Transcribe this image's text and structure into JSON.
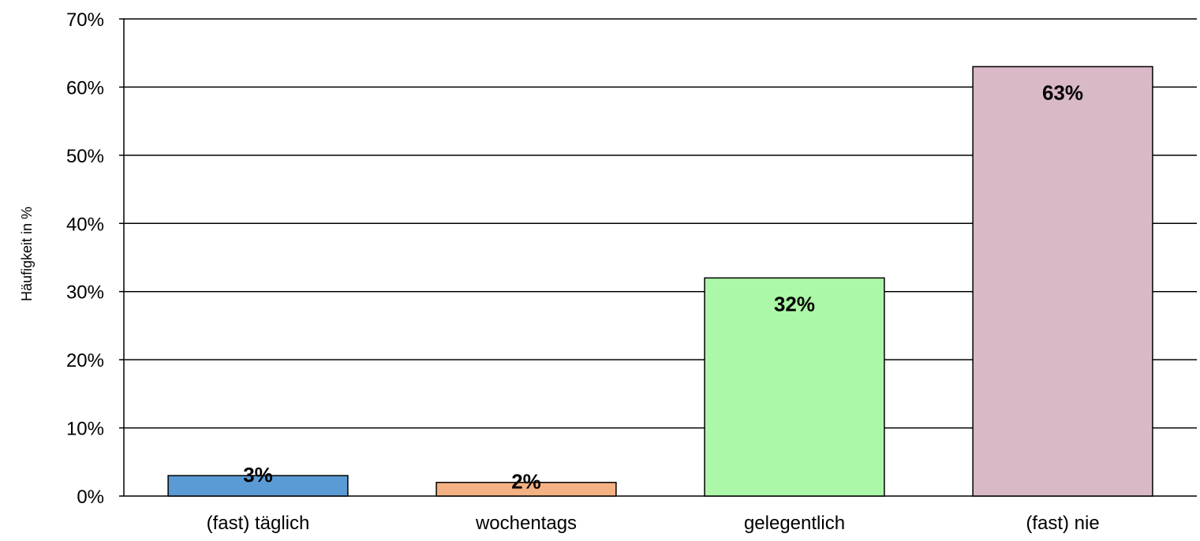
{
  "chart_data": {
    "type": "bar",
    "title": "",
    "xlabel": "",
    "ylabel": "Häufigkeit in %",
    "ylim": [
      0,
      70
    ],
    "y_ticks": [
      0,
      10,
      20,
      30,
      40,
      50,
      60,
      70
    ],
    "y_tick_labels": [
      "0%",
      "10%",
      "20%",
      "30%",
      "40%",
      "50%",
      "60%",
      "70%"
    ],
    "grid": true,
    "legend": "none",
    "categories": [
      "(fast) täglich",
      "wochentags",
      "gelegentlich",
      "(fast) nie"
    ],
    "values": [
      3,
      2,
      32,
      63
    ],
    "data_labels": [
      "3%",
      "2%",
      "32%",
      "63%"
    ],
    "colors": [
      "#5b9bd5",
      "#f4b183",
      "#adf7a8",
      "#d9b8c8"
    ]
  }
}
